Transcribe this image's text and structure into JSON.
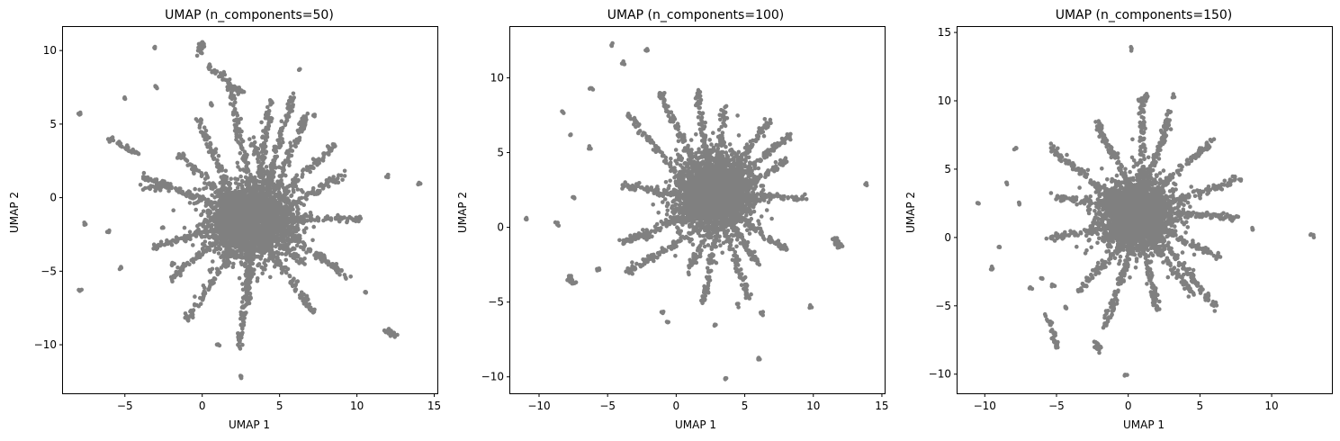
{
  "chart_data": [
    {
      "type": "scatter",
      "title": "UMAP (n_components=50)",
      "xlabel": "UMAP 1",
      "ylabel": "UMAP 2",
      "xlim": [
        -9,
        15.2
      ],
      "ylim": [
        -13.3,
        11.6
      ],
      "xticks": [
        -5,
        0,
        5,
        10,
        15
      ],
      "yticks": [
        -10,
        -5,
        0,
        5,
        10
      ],
      "marker_color": "#808080",
      "grid": false,
      "core": {
        "center": [
          3.2,
          -1.5
        ],
        "spread": [
          2.2,
          2.0
        ],
        "n": 2600
      },
      "arms": [
        {
          "from": [
            2.5,
            -1
          ],
          "to": [
            -0.3,
            5.3
          ]
        },
        {
          "from": [
            2.0,
            -1
          ],
          "to": [
            -4.0,
            1.5
          ]
        },
        {
          "from": [
            2.5,
            -1.5
          ],
          "to": [
            -3.2,
            -3.4
          ]
        },
        {
          "from": [
            3.0,
            -2
          ],
          "to": [
            -1.0,
            -8.3
          ]
        },
        {
          "from": [
            3.5,
            -2
          ],
          "to": [
            2.3,
            -10.2
          ]
        },
        {
          "from": [
            3.0,
            1
          ],
          "to": [
            1.8,
            7.5
          ]
        },
        {
          "from": [
            3.5,
            0
          ],
          "to": [
            4.5,
            6.6
          ]
        },
        {
          "from": [
            4.0,
            0
          ],
          "to": [
            5.9,
            7.1
          ]
        },
        {
          "from": [
            4.5,
            0
          ],
          "to": [
            6.8,
            5.7
          ]
        },
        {
          "from": [
            5.0,
            0
          ],
          "to": [
            8.6,
            3.7
          ]
        },
        {
          "from": [
            5.0,
            -1
          ],
          "to": [
            9.2,
            1.6
          ]
        },
        {
          "from": [
            5.0,
            -1.5
          ],
          "to": [
            10.4,
            -1.4
          ]
        },
        {
          "from": [
            5.0,
            -2
          ],
          "to": [
            9.5,
            -5.5
          ]
        },
        {
          "from": [
            4.0,
            -3
          ],
          "to": [
            7.2,
            -7.8
          ]
        },
        {
          "from": [
            4.5,
            -2.5
          ],
          "to": [
            6.6,
            -4.6
          ]
        },
        {
          "from": [
            3.0,
            -3
          ],
          "to": [
            3.0,
            -7.5
          ]
        },
        {
          "from": [
            1.5,
            0
          ],
          "to": [
            -1.6,
            3.0
          ]
        },
        {
          "from": [
            2.0,
            -2
          ],
          "to": [
            -2.0,
            -5.5
          ]
        },
        {
          "from": [
            4.0,
            1
          ],
          "to": [
            3.3,
            4.0
          ]
        }
      ],
      "branches": [
        {
          "from": [
            0.3,
            9.0
          ],
          "to": [
            2.1,
            7.5
          ]
        },
        {
          "from": [
            1.5,
            7.5
          ],
          "to": [
            2.6,
            7.2
          ]
        },
        {
          "from": [
            -6.1,
            4.1
          ],
          "to": [
            -4.0,
            2.8
          ]
        },
        {
          "from": [
            11.8,
            -9.0
          ],
          "to": [
            12.4,
            -9.4
          ]
        },
        {
          "from": [
            -3.9,
            0.7
          ],
          "to": [
            -2.6,
            0.7
          ]
        },
        {
          "from": [
            -0.2,
            9.8
          ],
          "to": [
            0.0,
            10.5
          ]
        }
      ],
      "outliers": [
        [
          -7.9,
          5.7
        ],
        [
          -7.6,
          -1.8
        ],
        [
          -7.9,
          -6.3
        ],
        [
          -6.1,
          -2.3
        ],
        [
          -5.3,
          -4.8
        ],
        [
          -5.0,
          6.7
        ],
        [
          -3.1,
          10.2
        ],
        [
          -3.0,
          7.5
        ],
        [
          14.0,
          1.0
        ],
        [
          12.0,
          1.5
        ],
        [
          10.6,
          -6.4
        ],
        [
          2.5,
          -12.2
        ],
        [
          0.6,
          6.3
        ],
        [
          6.3,
          8.7
        ],
        [
          7.2,
          5.6
        ],
        [
          -2.0,
          -4.5
        ],
        [
          -2.5,
          -2.0
        ],
        [
          1.0,
          -10.0
        ]
      ]
    },
    {
      "type": "scatter",
      "title": "UMAP (n_components=100)",
      "xlabel": "UMAP 1",
      "ylabel": "UMAP 2",
      "xlim": [
        -12.1,
        15.2
      ],
      "ylim": [
        -11.1,
        13.4
      ],
      "xticks": [
        -10,
        -5,
        0,
        5,
        10,
        15
      ],
      "yticks": [
        -10,
        -5,
        0,
        5,
        10
      ],
      "marker_color": "#808080",
      "grid": false,
      "core": {
        "center": [
          2.8,
          2.3
        ],
        "spread": [
          2.1,
          2.0
        ],
        "n": 2600
      },
      "arms": [
        {
          "from": [
            2.0,
            3
          ],
          "to": [
            -1.2,
            9.0
          ]
        },
        {
          "from": [
            2.5,
            3
          ],
          "to": [
            1.5,
            9.2
          ]
        },
        {
          "from": [
            1.5,
            2
          ],
          "to": [
            -3.5,
            7.5
          ]
        },
        {
          "from": [
            1.5,
            2
          ],
          "to": [
            -4.0,
            2.8
          ]
        },
        {
          "from": [
            1.5,
            1
          ],
          "to": [
            -4.0,
            -1.0
          ]
        },
        {
          "from": [
            2.0,
            0
          ],
          "to": [
            -3.5,
            -3.0
          ]
        },
        {
          "from": [
            2.5,
            0
          ],
          "to": [
            0.8,
            -3.0
          ]
        },
        {
          "from": [
            3.0,
            0
          ],
          "to": [
            2.0,
            -5.0
          ]
        },
        {
          "from": [
            3.5,
            0
          ],
          "to": [
            5.3,
            -4.8
          ]
        },
        {
          "from": [
            4.0,
            1
          ],
          "to": [
            8.0,
            -1.5
          ]
        },
        {
          "from": [
            4.0,
            2
          ],
          "to": [
            9.5,
            2.0
          ]
        },
        {
          "from": [
            4.0,
            3
          ],
          "to": [
            8.4,
            6.2
          ]
        },
        {
          "from": [
            3.5,
            3
          ],
          "to": [
            6.8,
            7.2
          ]
        },
        {
          "from": [
            3.0,
            3
          ],
          "to": [
            3.5,
            8.0
          ]
        },
        {
          "from": [
            4.0,
            2
          ],
          "to": [
            8.0,
            4.5
          ]
        },
        {
          "from": [
            3.5,
            1
          ],
          "to": [
            6.0,
            -2.5
          ]
        }
      ],
      "branches": [
        {
          "from": [
            11.5,
            -0.8
          ],
          "to": [
            12.0,
            -1.3
          ]
        },
        {
          "from": [
            -7.8,
            -3.2
          ],
          "to": [
            -7.6,
            -3.7
          ]
        },
        {
          "from": [
            -4.0,
            -1.0
          ],
          "to": [
            -1.8,
            -0.5
          ]
        }
      ],
      "outliers": [
        [
          -10.9,
          0.6
        ],
        [
          -8.7,
          0.2
        ],
        [
          -8.3,
          7.7
        ],
        [
          -7.7,
          6.2
        ],
        [
          -4.7,
          12.2
        ],
        [
          -3.8,
          11.0
        ],
        [
          -6.2,
          9.3
        ],
        [
          -6.3,
          5.3
        ],
        [
          -5.7,
          -2.8
        ],
        [
          -7.5,
          2.0
        ],
        [
          13.9,
          2.9
        ],
        [
          11.8,
          -1.0
        ],
        [
          9.8,
          -5.3
        ],
        [
          6.0,
          -8.8
        ],
        [
          3.6,
          -10.1
        ],
        [
          2.8,
          -6.5
        ],
        [
          -1.0,
          -5.7
        ],
        [
          -0.6,
          -6.4
        ],
        [
          -2.1,
          11.8
        ],
        [
          4.5,
          -5.2
        ],
        [
          6.3,
          -5.7
        ]
      ]
    },
    {
      "type": "scatter",
      "title": "UMAP (n_components=150)",
      "xlabel": "UMAP 1",
      "ylabel": "UMAP 2",
      "xlim": [
        -11.9,
        14.2
      ],
      "ylim": [
        -11.4,
        15.4
      ],
      "xticks": [
        -10,
        -5,
        0,
        5,
        10
      ],
      "yticks": [
        -10,
        -5,
        0,
        5,
        10,
        15
      ],
      "marker_color": "#808080",
      "grid": false,
      "core": {
        "center": [
          0.6,
          1.7
        ],
        "spread": [
          2.0,
          2.0
        ],
        "n": 2600
      },
      "arms": [
        {
          "from": [
            0,
            2
          ],
          "to": [
            -5.2,
            3.0
          ]
        },
        {
          "from": [
            0,
            1
          ],
          "to": [
            -5.5,
            0.0
          ]
        },
        {
          "from": [
            0,
            0
          ],
          "to": [
            -3.5,
            -4.0
          ]
        },
        {
          "from": [
            0.5,
            0
          ],
          "to": [
            -1.6,
            -6.5
          ]
        },
        {
          "from": [
            1.0,
            0
          ],
          "to": [
            2.0,
            -5.3
          ]
        },
        {
          "from": [
            1.5,
            0
          ],
          "to": [
            4.5,
            -4.2
          ]
        },
        {
          "from": [
            1.5,
            1
          ],
          "to": [
            6.2,
            -5.3
          ]
        },
        {
          "from": [
            1.5,
            2
          ],
          "to": [
            7.7,
            1.4
          ]
        },
        {
          "from": [
            1.5,
            2
          ],
          "to": [
            7.8,
            4.3
          ]
        },
        {
          "from": [
            1.5,
            3
          ],
          "to": [
            6.0,
            7.2
          ]
        },
        {
          "from": [
            1.0,
            3
          ],
          "to": [
            3.0,
            9.2
          ]
        },
        {
          "from": [
            1.0,
            3
          ],
          "to": [
            1.0,
            10.0
          ]
        },
        {
          "from": [
            0.5,
            3
          ],
          "to": [
            -2.2,
            8.4
          ]
        },
        {
          "from": [
            0,
            2
          ],
          "to": [
            -5.4,
            6.6
          ]
        },
        {
          "from": [
            1.5,
            1
          ],
          "to": [
            6.5,
            -1.5
          ]
        }
      ],
      "branches": [
        {
          "from": [
            0.9,
            10.0
          ],
          "to": [
            1.2,
            10.3
          ]
        },
        {
          "from": [
            -2.2,
            -7.6
          ],
          "to": [
            -2.0,
            -8.3
          ]
        },
        {
          "from": [
            -5.6,
            -5.6
          ],
          "to": [
            -5.0,
            -8.0
          ]
        }
      ],
      "outliers": [
        [
          -10.5,
          2.5
        ],
        [
          -9.5,
          -2.3
        ],
        [
          -9.0,
          -0.7
        ],
        [
          -8.5,
          4.0
        ],
        [
          -7.9,
          6.5
        ],
        [
          -7.6,
          2.5
        ],
        [
          -6.8,
          -3.7
        ],
        [
          0.2,
          13.8
        ],
        [
          -0.2,
          -10.1
        ],
        [
          12.8,
          0.1
        ],
        [
          8.7,
          0.6
        ],
        [
          3.2,
          10.3
        ],
        [
          -4.3,
          -5.1
        ],
        [
          -6.0,
          -3.0
        ],
        [
          -5.2,
          -3.5
        ]
      ]
    }
  ]
}
